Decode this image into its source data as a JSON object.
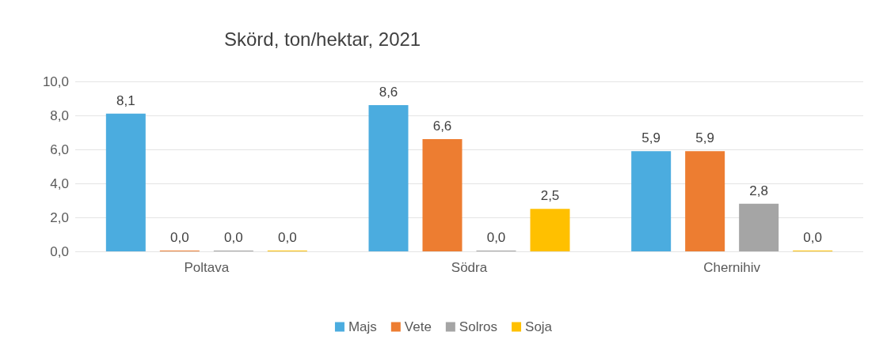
{
  "chart_data": {
    "type": "bar",
    "title": "Skörd, ton/hektar, 2021",
    "categories": [
      "Poltava",
      "Södra",
      "Chernihiv"
    ],
    "series": [
      {
        "name": "Majs",
        "color": "#4bacdf",
        "values": [
          8.1,
          8.6,
          5.9
        ],
        "value_labels": [
          "8,1",
          "8,6",
          "5,9"
        ]
      },
      {
        "name": "Vete",
        "color": "#ed7d31",
        "values": [
          0,
          6.6,
          5.9
        ],
        "value_labels": [
          "0,0",
          "6,6",
          "5,9"
        ]
      },
      {
        "name": "Solros",
        "color": "#a5a5a5",
        "values": [
          0,
          0,
          2.8
        ],
        "value_labels": [
          "0,0",
          "0,0",
          "2,8"
        ]
      },
      {
        "name": "Soja",
        "color": "#ffc000",
        "values": [
          0,
          2.5,
          0
        ],
        "value_labels": [
          "0,0",
          "2,5",
          "0,0"
        ]
      }
    ],
    "ylim": [
      0,
      10
    ],
    "yticks": [
      {
        "value": 0,
        "label": "0,0"
      },
      {
        "value": 2,
        "label": "2,0"
      },
      {
        "value": 4,
        "label": "4,0"
      },
      {
        "value": 6,
        "label": "6,0"
      },
      {
        "value": 8,
        "label": "8,0"
      },
      {
        "value": 10,
        "label": "10,0"
      }
    ],
    "grid": "y",
    "legend": "bottom"
  }
}
